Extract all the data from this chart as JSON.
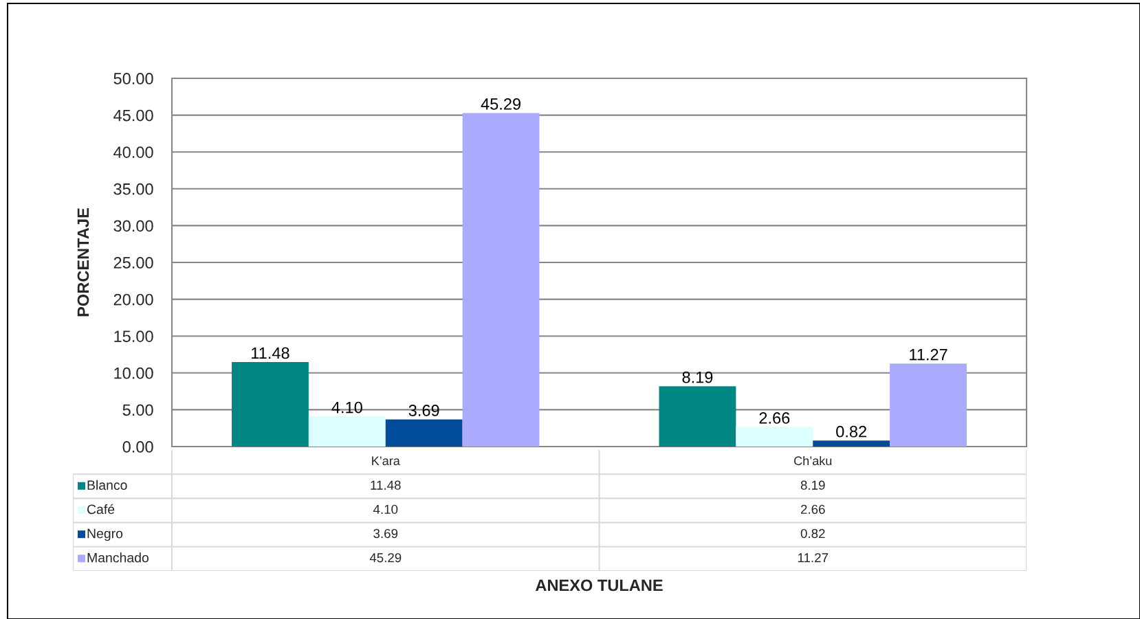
{
  "chart_data": {
    "type": "bar",
    "ylabel": "PORCENTAJE",
    "categories": [
      "K’ara",
      "Ch’aku"
    ],
    "series": [
      {
        "name": "Blanco",
        "color": "#008784",
        "values": [
          11.48,
          8.19
        ],
        "value_labels": [
          "11.48",
          "8.19"
        ]
      },
      {
        "name": "Café",
        "color": "#ddffff",
        "values": [
          4.1,
          2.66
        ],
        "value_labels": [
          "4.10",
          "2.66"
        ]
      },
      {
        "name": "Negro",
        "color": "#004c99",
        "values": [
          3.69,
          0.82
        ],
        "value_labels": [
          "3.69",
          "0.82"
        ]
      },
      {
        "name": "Manchado",
        "color": "#aaaaff",
        "values": [
          45.29,
          11.27
        ],
        "value_labels": [
          "45.29",
          "11.27"
        ]
      }
    ],
    "ylim": [
      0,
      50
    ],
    "yticks": [
      {
        "value": 0,
        "label": "0.00"
      },
      {
        "value": 5,
        "label": "5.00"
      },
      {
        "value": 10,
        "label": "10.00"
      },
      {
        "value": 15,
        "label": "15.00"
      },
      {
        "value": 20,
        "label": "20.00"
      },
      {
        "value": 25,
        "label": "25.00"
      },
      {
        "value": 30,
        "label": "30.00"
      },
      {
        "value": 35,
        "label": "35.00"
      },
      {
        "value": 40,
        "label": "40.00"
      },
      {
        "value": 45,
        "label": "45.00"
      },
      {
        "value": 50,
        "label": "50.00"
      }
    ],
    "grid": "y",
    "legend": "bottom",
    "annotations": [
      "ANEXO TULANE"
    ]
  }
}
